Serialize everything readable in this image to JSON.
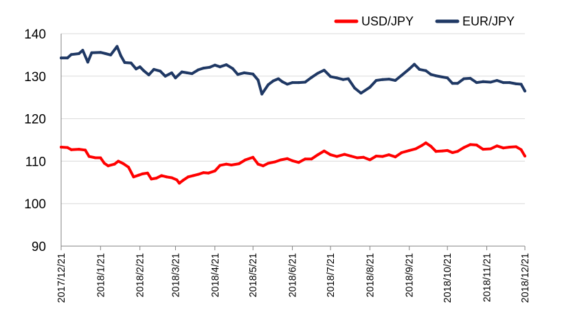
{
  "chart_data": {
    "type": "line",
    "title": "",
    "xlabel": "",
    "ylabel": "",
    "ylim": [
      90,
      140
    ],
    "y_ticks": [
      "90",
      "100",
      "110",
      "120",
      "130",
      "140"
    ],
    "x_ticks": [
      "2017/12/21",
      "2018/1/21",
      "2018/2/21",
      "2018/3/21",
      "2018/4/21",
      "2018/5/21",
      "2018/6/21",
      "2018/7/21",
      "2018/8/21",
      "2018/9/21",
      "2018/10/21",
      "2018/11/21",
      "2018/12/21"
    ],
    "grid": "horizontal",
    "legend_position": "top-right",
    "series": [
      {
        "name": "USD/JPY",
        "color": "#ff0000",
        "points": [
          [
            "2017-12-21",
            113.3
          ],
          [
            "2017-12-26",
            113.2
          ],
          [
            "2017-12-29",
            112.7
          ],
          [
            "2018-01-04",
            112.8
          ],
          [
            "2018-01-09",
            112.6
          ],
          [
            "2018-01-12",
            111.1
          ],
          [
            "2018-01-17",
            110.8
          ],
          [
            "2018-01-21",
            110.8
          ],
          [
            "2018-01-24",
            109.5
          ],
          [
            "2018-01-27",
            108.9
          ],
          [
            "2018-02-01",
            109.3
          ],
          [
            "2018-02-04",
            110.0
          ],
          [
            "2018-02-08",
            109.4
          ],
          [
            "2018-02-12",
            108.6
          ],
          [
            "2018-02-16",
            106.3
          ],
          [
            "2018-02-20",
            106.7
          ],
          [
            "2018-02-23",
            107.0
          ],
          [
            "2018-02-27",
            107.2
          ],
          [
            "2018-03-02",
            105.8
          ],
          [
            "2018-03-06",
            106.0
          ],
          [
            "2018-03-10",
            106.6
          ],
          [
            "2018-03-14",
            106.3
          ],
          [
            "2018-03-18",
            106.1
          ],
          [
            "2018-03-22",
            105.6
          ],
          [
            "2018-03-24",
            104.8
          ],
          [
            "2018-03-27",
            105.5
          ],
          [
            "2018-03-31",
            106.3
          ],
          [
            "2018-04-04",
            106.6
          ],
          [
            "2018-04-08",
            106.9
          ],
          [
            "2018-04-12",
            107.3
          ],
          [
            "2018-04-16",
            107.2
          ],
          [
            "2018-04-21",
            107.7
          ],
          [
            "2018-04-25",
            109.0
          ],
          [
            "2018-04-30",
            109.3
          ],
          [
            "2018-05-04",
            109.1
          ],
          [
            "2018-05-10",
            109.4
          ],
          [
            "2018-05-15",
            110.3
          ],
          [
            "2018-05-21",
            110.9
          ],
          [
            "2018-05-25",
            109.3
          ],
          [
            "2018-05-29",
            108.9
          ],
          [
            "2018-06-02",
            109.5
          ],
          [
            "2018-06-07",
            109.8
          ],
          [
            "2018-06-12",
            110.3
          ],
          [
            "2018-06-17",
            110.6
          ],
          [
            "2018-06-21",
            110.1
          ],
          [
            "2018-06-26",
            109.7
          ],
          [
            "2018-07-01",
            110.5
          ],
          [
            "2018-07-06",
            110.5
          ],
          [
            "2018-07-11",
            111.5
          ],
          [
            "2018-07-16",
            112.4
          ],
          [
            "2018-07-21",
            111.5
          ],
          [
            "2018-07-26",
            111.1
          ],
          [
            "2018-08-01",
            111.6
          ],
          [
            "2018-08-06",
            111.2
          ],
          [
            "2018-08-11",
            110.8
          ],
          [
            "2018-08-16",
            110.9
          ],
          [
            "2018-08-21",
            110.3
          ],
          [
            "2018-08-26",
            111.2
          ],
          [
            "2018-08-31",
            111.1
          ],
          [
            "2018-09-05",
            111.5
          ],
          [
            "2018-09-10",
            111.0
          ],
          [
            "2018-09-15",
            112.0
          ],
          [
            "2018-09-21",
            112.5
          ],
          [
            "2018-09-26",
            112.9
          ],
          [
            "2018-10-01",
            113.7
          ],
          [
            "2018-10-04",
            114.3
          ],
          [
            "2018-10-08",
            113.5
          ],
          [
            "2018-10-12",
            112.3
          ],
          [
            "2018-10-17",
            112.4
          ],
          [
            "2018-10-21",
            112.5
          ],
          [
            "2018-10-25",
            112.0
          ],
          [
            "2018-10-29",
            112.3
          ],
          [
            "2018-11-03",
            113.2
          ],
          [
            "2018-11-08",
            113.9
          ],
          [
            "2018-11-13",
            113.8
          ],
          [
            "2018-11-18",
            112.8
          ],
          [
            "2018-11-24",
            112.9
          ],
          [
            "2018-11-29",
            113.6
          ],
          [
            "2018-12-04",
            113.1
          ],
          [
            "2018-12-09",
            113.3
          ],
          [
            "2018-12-14",
            113.4
          ],
          [
            "2018-12-18",
            112.7
          ],
          [
            "2018-12-21",
            111.2
          ]
        ]
      },
      {
        "name": "EUR/JPY",
        "color": "#1f3864",
        "points": [
          [
            "2017-12-21",
            134.3
          ],
          [
            "2017-12-26",
            134.3
          ],
          [
            "2017-12-29",
            135.1
          ],
          [
            "2018-01-04",
            135.3
          ],
          [
            "2018-01-07",
            136.1
          ],
          [
            "2018-01-11",
            133.3
          ],
          [
            "2018-01-14",
            135.5
          ],
          [
            "2018-01-21",
            135.6
          ],
          [
            "2018-01-25",
            135.3
          ],
          [
            "2018-01-29",
            135.0
          ],
          [
            "2018-02-03",
            137.0
          ],
          [
            "2018-02-06",
            134.8
          ],
          [
            "2018-02-09",
            133.2
          ],
          [
            "2018-02-14",
            133.1
          ],
          [
            "2018-02-18",
            131.7
          ],
          [
            "2018-02-21",
            132.2
          ],
          [
            "2018-02-24",
            131.3
          ],
          [
            "2018-02-28",
            130.3
          ],
          [
            "2018-03-04",
            131.6
          ],
          [
            "2018-03-09",
            131.2
          ],
          [
            "2018-03-13",
            130.0
          ],
          [
            "2018-03-18",
            130.8
          ],
          [
            "2018-03-21",
            129.6
          ],
          [
            "2018-03-26",
            131.0
          ],
          [
            "2018-03-30",
            130.8
          ],
          [
            "2018-04-03",
            130.6
          ],
          [
            "2018-04-08",
            131.5
          ],
          [
            "2018-04-12",
            131.9
          ],
          [
            "2018-04-17",
            132.1
          ],
          [
            "2018-04-21",
            132.6
          ],
          [
            "2018-04-25",
            132.2
          ],
          [
            "2018-04-30",
            132.7
          ],
          [
            "2018-05-05",
            131.8
          ],
          [
            "2018-05-09",
            130.4
          ],
          [
            "2018-05-14",
            130.8
          ],
          [
            "2018-05-21",
            130.5
          ],
          [
            "2018-05-25",
            129.1
          ],
          [
            "2018-05-28",
            125.8
          ],
          [
            "2018-06-02",
            128.0
          ],
          [
            "2018-06-06",
            128.9
          ],
          [
            "2018-06-10",
            129.4
          ],
          [
            "2018-06-13",
            128.7
          ],
          [
            "2018-06-17",
            128.1
          ],
          [
            "2018-06-21",
            128.5
          ],
          [
            "2018-06-26",
            128.5
          ],
          [
            "2018-07-01",
            128.6
          ],
          [
            "2018-07-06",
            129.7
          ],
          [
            "2018-07-11",
            130.7
          ],
          [
            "2018-07-16",
            131.4
          ],
          [
            "2018-07-21",
            129.9
          ],
          [
            "2018-07-26",
            129.6
          ],
          [
            "2018-07-31",
            129.2
          ],
          [
            "2018-08-04",
            129.4
          ],
          [
            "2018-08-09",
            127.2
          ],
          [
            "2018-08-14",
            126.0
          ],
          [
            "2018-08-21",
            127.4
          ],
          [
            "2018-08-26",
            129.0
          ],
          [
            "2018-08-31",
            129.2
          ],
          [
            "2018-09-05",
            129.3
          ],
          [
            "2018-09-10",
            129.0
          ],
          [
            "2018-09-15",
            130.2
          ],
          [
            "2018-09-21",
            131.7
          ],
          [
            "2018-09-25",
            132.8
          ],
          [
            "2018-09-29",
            131.6
          ],
          [
            "2018-10-04",
            131.3
          ],
          [
            "2018-10-08",
            130.4
          ],
          [
            "2018-10-12",
            130.1
          ],
          [
            "2018-10-17",
            129.8
          ],
          [
            "2018-10-21",
            129.6
          ],
          [
            "2018-10-25",
            128.3
          ],
          [
            "2018-10-29",
            128.3
          ],
          [
            "2018-11-03",
            129.4
          ],
          [
            "2018-11-08",
            129.5
          ],
          [
            "2018-11-13",
            128.5
          ],
          [
            "2018-11-18",
            128.7
          ],
          [
            "2018-11-24",
            128.6
          ],
          [
            "2018-11-29",
            129.0
          ],
          [
            "2018-12-04",
            128.5
          ],
          [
            "2018-12-09",
            128.5
          ],
          [
            "2018-12-14",
            128.2
          ],
          [
            "2018-12-18",
            128.1
          ],
          [
            "2018-12-21",
            126.5
          ]
        ]
      }
    ]
  }
}
